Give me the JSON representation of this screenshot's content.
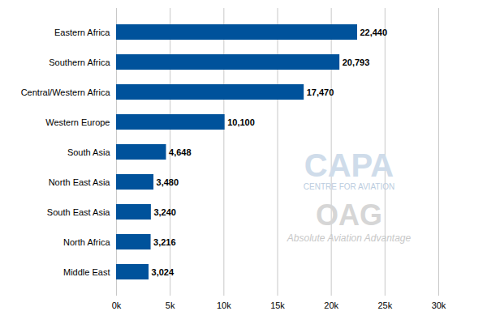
{
  "chart_data": {
    "type": "bar",
    "orientation": "horizontal",
    "categories": [
      "Eastern Africa",
      "Southern Africa",
      "Central/Western Africa",
      "Western Europe",
      "South Asia",
      "North East Asia",
      "South East Asia",
      "North Africa",
      "Middle East"
    ],
    "values": [
      22440,
      20793,
      17470,
      10100,
      4648,
      3480,
      3240,
      3216,
      3024
    ],
    "value_labels": [
      "22,440",
      "20,793",
      "17,470",
      "10,100",
      "4,648",
      "3,480",
      "3,240",
      "3,216",
      "3,024"
    ],
    "data_labels": true,
    "color": "#00529b",
    "xlim": [
      0,
      30000
    ],
    "xticks": [
      {
        "value": 0,
        "label": "0k"
      },
      {
        "value": 5000,
        "label": "5k"
      },
      {
        "value": 10000,
        "label": "10k"
      },
      {
        "value": 15000,
        "label": "15k"
      },
      {
        "value": 20000,
        "label": "20k"
      },
      {
        "value": 25000,
        "label": "25k"
      },
      {
        "value": 30000,
        "label": "30k"
      }
    ],
    "grid": true,
    "annotations": [
      "CAPA",
      "CENTRE FOR AVIATION",
      "OAG",
      "Absolute Aviation Advantage"
    ]
  }
}
